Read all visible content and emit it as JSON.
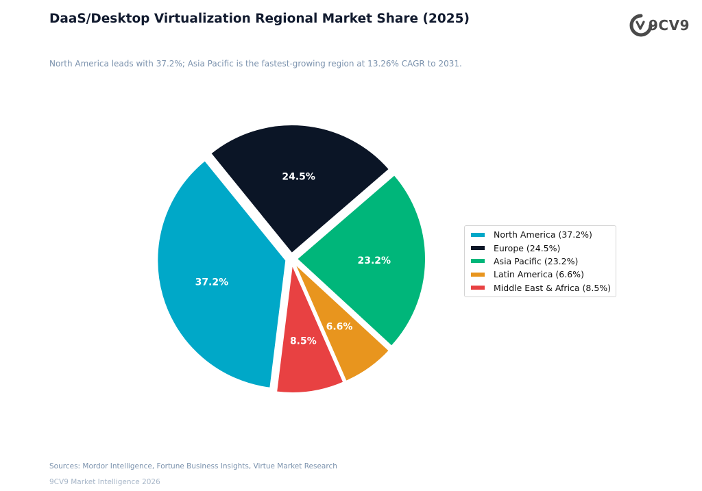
{
  "header": {
    "title": "DaaS/Desktop Virtualization Regional Market Share (2025)",
    "subtitle": "North America leads with 37.2%; Asia Pacific is the fastest-growing region at 13.26% CAGR to 2031."
  },
  "logo": {
    "text": "9CV9",
    "icon": "9cv9-logo-icon",
    "color": "#4a4a4a"
  },
  "chart_data": {
    "type": "pie",
    "title": "DaaS/Desktop Virtualization Regional Market Share (2025)",
    "legend_position": "right",
    "slices": [
      {
        "name": "North America",
        "value": 37.2,
        "label": "37.2%",
        "legend": "North America (37.2%)",
        "color": "#00a8c8"
      },
      {
        "name": "Europe",
        "value": 24.5,
        "label": "24.5%",
        "legend": "Europe (24.5%)",
        "color": "#0b1526"
      },
      {
        "name": "Asia Pacific",
        "value": 23.2,
        "label": "23.2%",
        "legend": "Asia Pacific (23.2%)",
        "color": "#00b67a"
      },
      {
        "name": "Latin America",
        "value": 6.6,
        "label": "6.6%",
        "legend": "Latin America (6.6%)",
        "color": "#e8951e"
      },
      {
        "name": "Middle East & Africa",
        "value": 8.5,
        "label": "8.5%",
        "legend": "Middle East & Africa (8.5%)",
        "color": "#e84142"
      }
    ]
  },
  "footer": {
    "sources": "Sources: Mordor Intelligence, Fortune Business Insights, Virtue Market Research",
    "brand": "9CV9 Market Intelligence 2026"
  }
}
